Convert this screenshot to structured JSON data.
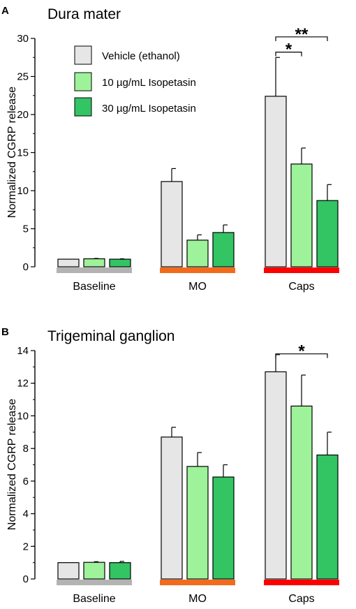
{
  "figure": {
    "legend": [
      {
        "label": "Vehicle (ethanol)",
        "color": "#e6e6e6"
      },
      {
        "label": "10 µg/mL Isopetasin",
        "color": "#9ef29a"
      },
      {
        "label": "30 µg/mL Isopetasin",
        "color": "#33c463"
      }
    ],
    "group_bar_colors": {
      "Baseline": "#b3b3b3",
      "MO": "#f26b1d",
      "Caps": "#ff0000"
    },
    "group_label_colors": {
      "Baseline": "#000000",
      "MO": "#e8601c",
      "Caps": "#e01010"
    }
  },
  "chart_data": [
    {
      "type": "bar",
      "panel": "A",
      "title": "Dura mater",
      "ylabel": "Normalized CGRP release",
      "ylim": [
        0,
        30
      ],
      "yticks": [
        0,
        5,
        10,
        15,
        20,
        25,
        30
      ],
      "categories": [
        "Baseline",
        "MO",
        "Caps"
      ],
      "series": [
        {
          "name": "Vehicle (ethanol)",
          "values": [
            1.0,
            11.2,
            22.4
          ],
          "errors": [
            0.0,
            1.7,
            5.1
          ]
        },
        {
          "name": "10 µg/mL Isopetasin",
          "values": [
            1.05,
            3.5,
            13.5
          ],
          "errors": [
            0.05,
            0.7,
            2.1
          ]
        },
        {
          "name": "30 µg/mL Isopetasin",
          "values": [
            1.0,
            4.5,
            8.7
          ],
          "errors": [
            0.05,
            1.0,
            2.1
          ]
        }
      ],
      "significance": [
        {
          "category": "Caps",
          "from": 0,
          "to": 1,
          "label": "*",
          "at": 28.2
        },
        {
          "category": "Caps",
          "from": 0,
          "to": 2,
          "label": "**",
          "at": 30.2
        }
      ],
      "legend": "top-left",
      "grid": false
    },
    {
      "type": "bar",
      "panel": "B",
      "title": "Trigeminal ganglion",
      "ylabel": "Normalized CGRP release",
      "ylim": [
        0,
        14
      ],
      "yticks": [
        0,
        2,
        4,
        6,
        8,
        10,
        12,
        14
      ],
      "categories": [
        "Baseline",
        "MO",
        "Caps"
      ],
      "series": [
        {
          "name": "Vehicle (ethanol)",
          "values": [
            1.0,
            8.7,
            12.7
          ],
          "errors": [
            0.0,
            0.6,
            1.05
          ]
        },
        {
          "name": "10 µg/mL Isopetasin",
          "values": [
            1.02,
            6.9,
            10.6
          ],
          "errors": [
            0.04,
            0.85,
            1.9
          ]
        },
        {
          "name": "30 µg/mL Isopetasin",
          "values": [
            1.0,
            6.25,
            7.6
          ],
          "errors": [
            0.08,
            0.75,
            1.4
          ]
        }
      ],
      "significance": [
        {
          "category": "Caps",
          "from": 0,
          "to": 2,
          "label": "*",
          "at": 13.8
        }
      ],
      "grid": false
    }
  ]
}
